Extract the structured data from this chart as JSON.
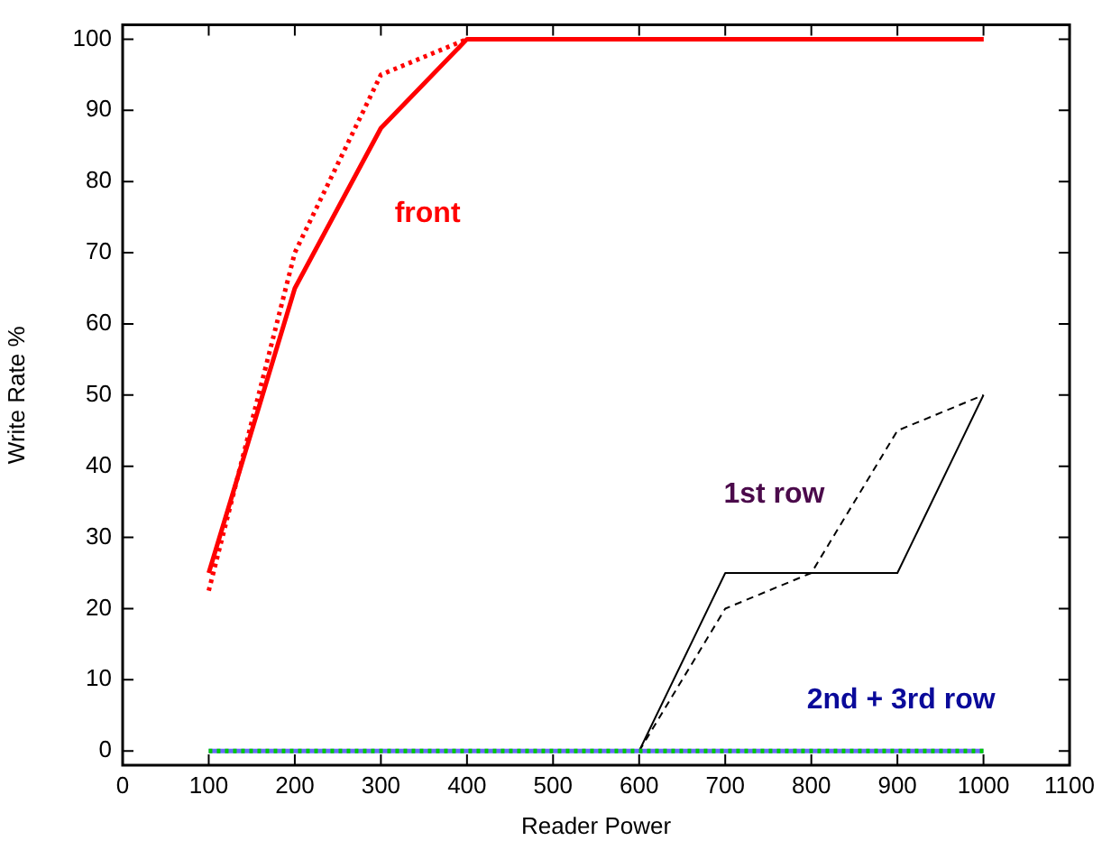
{
  "chart_data": {
    "type": "line",
    "xlabel": "Reader Power",
    "ylabel": "Write Rate %",
    "xlim": [
      0,
      1100
    ],
    "ylim": [
      -2,
      102
    ],
    "xticks": [
      0,
      100,
      200,
      300,
      400,
      500,
      600,
      700,
      800,
      900,
      1000,
      1100
    ],
    "yticks": [
      0,
      10,
      20,
      30,
      40,
      50,
      60,
      70,
      80,
      90,
      100
    ],
    "marker": "none",
    "series": [
      {
        "color": "#ff0000",
        "line_style": "solid",
        "x": [
          100,
          200,
          300,
          400,
          500,
          600,
          700,
          800,
          900,
          1000
        ],
        "values": [
          25,
          65,
          87.5,
          100,
          100,
          100,
          100,
          100,
          100,
          100
        ]
      },
      {
        "color": "#ff0000",
        "line_style": "dotted",
        "x": [
          100,
          200,
          300,
          400,
          500,
          600,
          700,
          800,
          900,
          1000
        ],
        "values": [
          22.5,
          70,
          95,
          100,
          100,
          100,
          100,
          100,
          100,
          100
        ]
      },
      {
        "color": "#000000",
        "line_style": "solid",
        "x": [
          600,
          700,
          800,
          900,
          1000
        ],
        "values": [
          0,
          25,
          25,
          25,
          50
        ]
      },
      {
        "color": "#000000",
        "line_style": "dashed",
        "x": [
          600,
          700,
          800,
          900,
          1000
        ],
        "values": [
          0,
          20,
          25,
          45,
          50
        ]
      },
      {
        "color": "#6a6aff",
        "line_style": "solid",
        "x": [
          100,
          200,
          300,
          400,
          500,
          600,
          700,
          800,
          900,
          1000
        ],
        "values": [
          0,
          0,
          0,
          0,
          0,
          0,
          0,
          0,
          0,
          0
        ]
      },
      {
        "color": "#00cc00",
        "line_style": "dotted",
        "x": [
          100,
          200,
          300,
          400,
          500,
          600,
          700,
          800,
          900,
          1000
        ],
        "values": [
          0,
          0,
          0,
          0,
          0,
          0,
          0,
          0,
          0,
          0
        ]
      }
    ],
    "annotations": [
      "front",
      "1st row",
      "2nd + 3rd row"
    ]
  }
}
